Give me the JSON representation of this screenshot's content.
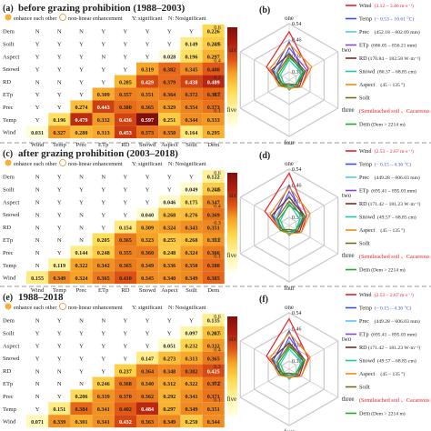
{
  "figure": {
    "panels": [
      {
        "letter": "(a)",
        "title": "before grazing prohibition (1988–2003)"
      },
      {
        "letter": "(b)",
        "title": ""
      },
      {
        "letter": "(c)",
        "title": "after grazing prohibition (2003–2018)"
      },
      {
        "letter": "(d)",
        "title": ""
      },
      {
        "letter": "(e)",
        "title": "1988–2018"
      },
      {
        "letter": "(f)",
        "title": ""
      }
    ],
    "legend_text": {
      "enhance": "enhance each other",
      "nonlinear": "non-linear enhancement",
      "y": "Y: significant",
      "n": "N: Nosignificant"
    },
    "colorbar_ticks": [
      "0.6",
      "0.5",
      "0.4",
      "0.3",
      "0.2",
      "0.1"
    ],
    "radar_axes": [
      "one",
      "two",
      "three",
      "four",
      "five",
      "six"
    ],
    "radar_ticks": [
      "0.54",
      "0.46",
      "0.38",
      "0.30"
    ]
  },
  "chart_data": [
    {
      "type": "heatmap",
      "panel": "(a)",
      "rows": [
        "Dem",
        "Soilt",
        "Aspect",
        "Snowd",
        "RD",
        "ETp",
        "Prec",
        "Temp",
        "Wind"
      ],
      "columns": [
        "Wind",
        "Temp",
        "Prec",
        "ETp",
        "RD",
        "Snowd",
        "Aspect",
        "Soilt",
        "Dem"
      ],
      "cells": [
        [
          "N",
          "N",
          "N",
          "Y",
          "Y",
          "Y",
          "Y",
          "Y",
          "0.226"
        ],
        [
          "Y",
          "Y",
          "Y",
          "Y",
          "Y",
          "Y",
          "Y",
          "0.149",
          "0.249"
        ],
        [
          "Y",
          "Y",
          "Y",
          "N",
          "Y",
          "Y",
          "0.028",
          "0.196",
          "0.297"
        ],
        [
          "Y",
          "Y",
          "Y",
          "Y",
          "Y",
          "0.319",
          "0.382",
          "0.345",
          "0.400"
        ],
        [
          "N",
          "N",
          "Y",
          "Y",
          "0.285",
          "0.429",
          "0.379",
          "0.438",
          "0.489"
        ],
        [
          "Y",
          "Y",
          "Y",
          "0.309",
          "0.357",
          "0.351",
          "0.364",
          "0.372",
          "0.387"
        ],
        [
          "Y",
          "Y",
          "0.274",
          "0.443",
          "0.380",
          "0.365",
          "0.329",
          "0.354",
          "0.373"
        ],
        [
          "Y",
          "0.196",
          "0.479",
          "0.332",
          "0.436",
          "0.597",
          "0.251",
          "0.344",
          "0.333"
        ],
        [
          "0.031",
          "0.327",
          "0.280",
          "0.313",
          "0.453",
          "0.373",
          "0.350",
          "0.164",
          "0.295"
        ]
      ],
      "colorbar": {
        "min": 0,
        "max": 0.6
      }
    },
    {
      "type": "radar",
      "panel": "(b)",
      "axes": [
        "one",
        "two",
        "three",
        "four",
        "five",
        "six"
      ],
      "range": [
        0.26,
        0.54
      ],
      "series": [
        {
          "name": "Wind",
          "range_label": "(3.12 – 3.46 m·s⁻¹)",
          "color": "#e8202a",
          "values": [
            0.5,
            0.37,
            0.33,
            0.3,
            0.31,
            0.39
          ]
        },
        {
          "name": "Temp",
          "range_label": "(− 0.53 – 10.61 °C)",
          "color": "#3b4fe0",
          "values": [
            0.45,
            0.34,
            0.31,
            0.28,
            0.3,
            0.35
          ]
        },
        {
          "name": "Prec",
          "range_label": "(452.18 – 602.69 mm)",
          "color": "#56c7e6",
          "values": [
            0.4,
            0.33,
            0.3,
            0.29,
            0.32,
            0.34
          ]
        },
        {
          "name": "ETp",
          "range_label": "(686.05 – 856.21 mm)",
          "color": "#8a4ad0",
          "values": [
            0.42,
            0.36,
            0.31,
            0.29,
            0.3,
            0.33
          ]
        },
        {
          "name": "RD",
          "range_label": "(170.84 – 182.58 W·m⁻²)",
          "color": "#7a2e1c",
          "values": [
            0.39,
            0.35,
            0.32,
            0.3,
            0.31,
            0.36
          ]
        },
        {
          "name": "Snowd",
          "range_label": "(86.37 – 68.85 cm)",
          "color": "#22c7a5",
          "values": [
            0.36,
            0.33,
            0.3,
            0.31,
            0.29,
            0.31
          ]
        },
        {
          "name": "Aspect",
          "range_label": "(45 – 135 °)",
          "color": "#f08a1c",
          "values": [
            0.44,
            0.39,
            0.33,
            0.3,
            0.32,
            0.37
          ]
        },
        {
          "name": "Soilt",
          "range_label": "",
          "color": "#7a6a18",
          "values": [
            0.38,
            0.34,
            0.31,
            0.28,
            0.3,
            0.33
          ]
        },
        {
          "name": "(Semileached soil 、Cacareous soil)",
          "range_label": "",
          "color": "#e8202a",
          "values": []
        },
        {
          "name": "Dem",
          "range_label": "(Dem > 2214 m)",
          "color": "#1faa2a",
          "values": [
            0.37,
            0.35,
            0.3,
            0.29,
            0.31,
            0.32
          ]
        }
      ]
    },
    {
      "type": "heatmap",
      "panel": "(c)",
      "rows": [
        "Dem",
        "Soilt",
        "Aspect",
        "Snowd",
        "RD",
        "ETp",
        "Prec",
        "Temp",
        "Wind"
      ],
      "columns": [
        "Wind",
        "Temp",
        "Prec",
        "ETp",
        "RD",
        "Snowd",
        "Aspect",
        "Soilt",
        "Dem"
      ],
      "cells": [
        [
          "N",
          "Y",
          "N",
          "N",
          "Y",
          "Y",
          "Y",
          "Y",
          "0.122"
        ],
        [
          "N",
          "Y",
          "Y",
          "Y",
          "Y",
          "Y",
          "Y",
          "0.049",
          "0.248"
        ],
        [
          "N",
          "Y",
          "Y",
          "Y",
          "Y",
          "Y",
          "0.046",
          "0.175",
          "0.347"
        ],
        [
          "N",
          "Y",
          "N",
          "Y",
          "Y",
          "0.040",
          "0.268",
          "0.276",
          "0.369"
        ],
        [
          "N",
          "Y",
          "N",
          "Y",
          "0.154",
          "0.309",
          "0.324",
          "0.343",
          "0.351"
        ],
        [
          "N",
          "N",
          "N",
          "0.205",
          "0.365",
          "0.323",
          "0.255",
          "0.268",
          "0.333"
        ],
        [
          "N",
          "Y",
          "0.144",
          "0.248",
          "0.355",
          "0.360",
          "0.248",
          "0.324",
          "0.366"
        ],
        [
          "N",
          "0.119",
          "0.322",
          "0.342",
          "0.365",
          "0.349",
          "0.336",
          "0.350",
          "0.380"
        ],
        [
          "0.155",
          "0.349",
          "0.324",
          "0.365",
          "0.410",
          "0.345",
          "0.340",
          "0.349",
          "0.385"
        ]
      ],
      "colorbar": {
        "min": 0,
        "max": 0.6
      }
    },
    {
      "type": "radar",
      "panel": "(d)",
      "axes": [
        "one",
        "two",
        "three",
        "four",
        "five",
        "six"
      ],
      "range": [
        0.26,
        0.54
      ],
      "series": [
        {
          "name": "Wind",
          "range_label": "(2.53 – 2.67 m·s⁻¹)",
          "color": "#e8202a",
          "values": [
            0.52,
            0.36,
            0.33,
            0.3,
            0.31,
            0.4
          ]
        },
        {
          "name": "Temp",
          "range_label": "(− 0.15 – 4.30 °C)",
          "color": "#3b4fe0",
          "values": [
            0.46,
            0.34,
            0.31,
            0.29,
            0.3,
            0.35
          ]
        },
        {
          "name": "Prec",
          "range_label": "(449.28 – 606.03 mm)",
          "color": "#56c7e6",
          "values": [
            0.41,
            0.33,
            0.3,
            0.29,
            0.31,
            0.34
          ]
        },
        {
          "name": "ETp",
          "range_label": "(695.41 – 895.03 mm)",
          "color": "#8a4ad0",
          "values": [
            0.43,
            0.35,
            0.31,
            0.3,
            0.3,
            0.33
          ]
        },
        {
          "name": "RD",
          "range_label": "(171.42 – 181.23 W·m⁻²)",
          "color": "#7a2e1c",
          "values": [
            0.4,
            0.35,
            0.32,
            0.3,
            0.31,
            0.36
          ]
        },
        {
          "name": "Snowd",
          "range_label": "(49.57 – 68.85 cm)",
          "color": "#22c7a5",
          "values": [
            0.37,
            0.32,
            0.3,
            0.31,
            0.29,
            0.31
          ]
        },
        {
          "name": "Aspect",
          "range_label": "(45 – 135 °)",
          "color": "#f08a1c",
          "values": [
            0.45,
            0.38,
            0.33,
            0.3,
            0.31,
            0.37
          ]
        },
        {
          "name": "Soilt",
          "range_label": "",
          "color": "#7a6a18",
          "values": [
            0.38,
            0.34,
            0.31,
            0.28,
            0.3,
            0.33
          ]
        },
        {
          "name": "(Semileached soil 、Cacareous soil)",
          "range_label": "",
          "color": "#e8202a",
          "values": []
        },
        {
          "name": "Dem",
          "range_label": "(Dem > 2214 m)",
          "color": "#1faa2a",
          "values": [
            0.36,
            0.35,
            0.3,
            0.29,
            0.31,
            0.32
          ]
        }
      ]
    },
    {
      "type": "heatmap",
      "panel": "(e)",
      "rows": [
        "Dem",
        "Soilt",
        "Aspect",
        "Snowd",
        "RD",
        "ETp",
        "Prec",
        "Temp",
        "Wind"
      ],
      "columns": [
        "Wind",
        "Temp",
        "Prec",
        "ETp",
        "RD",
        "Snowd",
        "Aspect",
        "Soilt",
        "Dem"
      ],
      "cells": [
        [
          "N",
          "Y",
          "N",
          "N",
          "Y",
          "Y",
          "Y",
          "Y",
          "0.135"
        ],
        [
          "Y",
          "Y",
          "Y",
          "Y",
          "Y",
          "Y",
          "Y",
          "0.097",
          "0.267"
        ],
        [
          "Y",
          "Y",
          "Y",
          "Y",
          "Y",
          "Y",
          "0.051",
          "0.232",
          "0.332"
        ],
        [
          "Y",
          "Y",
          "Y",
          "Y",
          "Y",
          "0.147",
          "0.273",
          "0.313",
          "0.365"
        ],
        [
          "N",
          "N",
          "Y",
          "Y",
          "0.237",
          "0.364",
          "0.348",
          "0.382",
          "0.425"
        ],
        [
          "N",
          "N",
          "N",
          "0.246",
          "0.368",
          "0.340",
          "0.312",
          "0.322",
          "0.372"
        ],
        [
          "N",
          "Y",
          "0.206",
          "0.339",
          "0.370",
          "0.362",
          "0.292",
          "0.341",
          "0.371"
        ],
        [
          "Y",
          "0.151",
          "0.384",
          "0.341",
          "0.402",
          "0.484",
          "0.297",
          "0.349",
          "0.351"
        ],
        [
          "0.071",
          "0.339",
          "0.301",
          "0.341",
          "0.432",
          "0.363",
          "0.349",
          "0.250",
          "0.344"
        ]
      ],
      "colorbar": {
        "min": 0,
        "max": 0.6
      }
    },
    {
      "type": "radar",
      "panel": "(f)",
      "axes": [
        "one",
        "two",
        "three",
        "four",
        "five",
        "six"
      ],
      "range": [
        0.26,
        0.54
      ],
      "series": [
        {
          "name": "Wind",
          "range_label": "(2.53 – 2.67 m·s⁻¹)",
          "color": "#e8202a",
          "values": [
            0.51,
            0.37,
            0.33,
            0.3,
            0.31,
            0.39
          ]
        },
        {
          "name": "Temp",
          "range_label": "(− 0.15 – 4.30 °C)",
          "color": "#3b4fe0",
          "values": [
            0.45,
            0.34,
            0.31,
            0.29,
            0.3,
            0.35
          ]
        },
        {
          "name": "Prec",
          "range_label": "(449.28 – 606.03 mm)",
          "color": "#56c7e6",
          "values": [
            0.4,
            0.33,
            0.3,
            0.29,
            0.32,
            0.34
          ]
        },
        {
          "name": "ETp",
          "range_label": "(695.41 – 895.03 mm)",
          "color": "#8a4ad0",
          "values": [
            0.42,
            0.35,
            0.31,
            0.29,
            0.3,
            0.33
          ]
        },
        {
          "name": "RD",
          "range_label": "(171.42 – 181.23 W·m⁻²)",
          "color": "#7a2e1c",
          "values": [
            0.39,
            0.35,
            0.32,
            0.3,
            0.31,
            0.36
          ]
        },
        {
          "name": "Snowd",
          "range_label": "(49.57 – 68.85 cm)",
          "color": "#22c7a5",
          "values": [
            0.36,
            0.33,
            0.3,
            0.31,
            0.29,
            0.31
          ]
        },
        {
          "name": "Aspect",
          "range_label": "(45 – 135 °)",
          "color": "#f08a1c",
          "values": [
            0.44,
            0.38,
            0.33,
            0.3,
            0.32,
            0.37
          ]
        },
        {
          "name": "Soilt",
          "range_label": "",
          "color": "#7a6a18",
          "values": [
            0.38,
            0.34,
            0.31,
            0.28,
            0.3,
            0.33
          ]
        },
        {
          "name": "(Semileached soil 、Cacareous soil)",
          "range_label": "",
          "color": "#e8202a",
          "values": []
        },
        {
          "name": "Dem",
          "range_label": "(Dem > 2214 m)",
          "color": "#1faa2a",
          "values": [
            0.37,
            0.35,
            0.3,
            0.29,
            0.31,
            0.32
          ]
        }
      ]
    }
  ]
}
